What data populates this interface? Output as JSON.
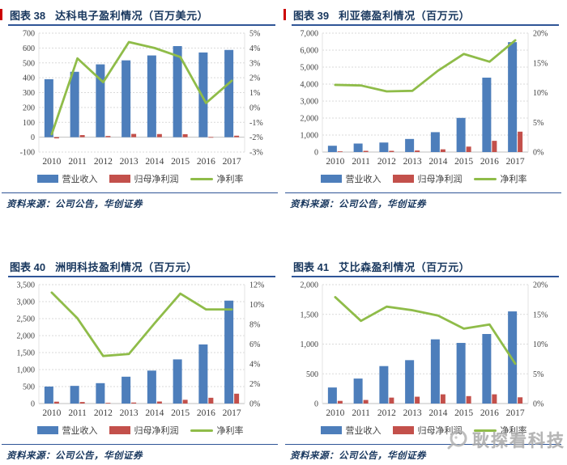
{
  "watermark": {
    "text": "耿探看科技"
  },
  "colors": {
    "bar_blue": "#4D7EBB",
    "bar_red": "#C3504B",
    "line_green": "#8FBC49",
    "title_navy": "#17365D",
    "rule_blue": "#2F5597",
    "red_tick": "#CC0000",
    "axis_text": "#404040",
    "gridline": "#D9D9D9"
  },
  "panels": [
    {
      "fig_label": "图表 38",
      "title": "达科电子盈利情况（百万美元）",
      "source": "资料来源：公司公告，华创证券"
    },
    {
      "fig_label": "图表 39",
      "title": "利亚德盈利情况（百万元）",
      "source": "资料来源：公司公告，华创证券"
    },
    {
      "fig_label": "图表 40",
      "title": "洲明科技盈利情况（百万元）",
      "source": "资料来源：公司公告，华创证券"
    },
    {
      "fig_label": "图表 41",
      "title": "艾比森盈利情况（百万元）",
      "source": "资料来源：公司公告，华创证券"
    }
  ],
  "chart_data": [
    {
      "type": "combo-bar-line",
      "title": "达科电子盈利情况（百万美元）",
      "unit": "百万美元",
      "categories": [
        "2010",
        "2011",
        "2012",
        "2013",
        "2014",
        "2015",
        "2016",
        "2017"
      ],
      "series": [
        {
          "name": "营业收入",
          "type": "bar",
          "axis": "left",
          "color": "#4D7EBB",
          "values": [
            390,
            440,
            490,
            517,
            550,
            613,
            570,
            587
          ]
        },
        {
          "name": "归母净利润",
          "type": "bar",
          "axis": "left",
          "color": "#C3504B",
          "values": [
            -8,
            14,
            8,
            22,
            21,
            20,
            1,
            10
          ]
        },
        {
          "name": "净利率",
          "type": "line",
          "axis": "right",
          "color": "#8FBC49",
          "values": [
            -1.8,
            3.3,
            1.7,
            4.4,
            4.0,
            3.4,
            0.3,
            1.8
          ]
        }
      ],
      "left_axis": {
        "min": -100,
        "max": 700,
        "ticks": [
          "700",
          "600",
          "500",
          "400",
          "300",
          "200",
          "100",
          "0",
          "-100"
        ]
      },
      "right_axis": {
        "min": -3,
        "max": 5,
        "ticks": [
          "5%",
          "4%",
          "3%",
          "2%",
          "1%",
          "0%",
          "-1%",
          "-2%",
          "-3%"
        ]
      },
      "grid": true,
      "legend_position": "bottom"
    },
    {
      "type": "combo-bar-line",
      "title": "利亚德盈利情况（百万元）",
      "unit": "百万元",
      "categories": [
        "2010",
        "2011",
        "2012",
        "2013",
        "2014",
        "2015",
        "2016",
        "2017"
      ],
      "series": [
        {
          "name": "营业收入",
          "type": "bar",
          "axis": "left",
          "color": "#4D7EBB",
          "values": [
            370,
            500,
            560,
            770,
            1170,
            2010,
            4380,
            6470
          ]
        },
        {
          "name": "归母净利润",
          "type": "bar",
          "axis": "left",
          "color": "#C3504B",
          "values": [
            40,
            70,
            70,
            90,
            160,
            320,
            660,
            1200
          ]
        },
        {
          "name": "净利率",
          "type": "line",
          "axis": "right",
          "color": "#8FBC49",
          "values": [
            11.3,
            11.2,
            10.2,
            10.3,
            13.7,
            16.5,
            15.2,
            18.8
          ]
        }
      ],
      "left_axis": {
        "min": 0,
        "max": 7000,
        "ticks": [
          "7,000",
          "6,000",
          "5,000",
          "4,000",
          "3,000",
          "2,000",
          "1,000",
          "0"
        ]
      },
      "right_axis": {
        "min": 0,
        "max": 20,
        "ticks": [
          "20%",
          "15%",
          "10%",
          "5%",
          "0%"
        ]
      },
      "grid": true,
      "legend_position": "bottom"
    },
    {
      "type": "combo-bar-line",
      "title": "洲明科技盈利情况（百万元）",
      "unit": "百万元",
      "categories": [
        "2010",
        "2011",
        "2012",
        "2013",
        "2014",
        "2015",
        "2016",
        "2017"
      ],
      "series": [
        {
          "name": "营业收入",
          "type": "bar",
          "axis": "left",
          "color": "#4D7EBB",
          "values": [
            500,
            520,
            600,
            790,
            970,
            1300,
            1740,
            3030
          ]
        },
        {
          "name": "归母净利润",
          "type": "bar",
          "axis": "left",
          "color": "#C3504B",
          "values": [
            55,
            45,
            20,
            30,
            60,
            110,
            170,
            290
          ]
        },
        {
          "name": "净利率",
          "type": "line",
          "axis": "right",
          "color": "#8FBC49",
          "values": [
            11.2,
            8.6,
            4.8,
            5.0,
            8.1,
            11.1,
            9.5,
            9.5
          ]
        }
      ],
      "left_axis": {
        "min": 0,
        "max": 3500,
        "ticks": [
          "3,500",
          "3,000",
          "2,500",
          "2,000",
          "1,500",
          "1,000",
          "500",
          "0"
        ]
      },
      "right_axis": {
        "min": 0,
        "max": 12,
        "ticks": [
          "12%",
          "10%",
          "8%",
          "6%",
          "4%",
          "2%",
          "0%"
        ]
      },
      "grid": true,
      "legend_position": "bottom"
    },
    {
      "type": "combo-bar-line",
      "title": "艾比森盈利情况（百万元）",
      "unit": "百万元",
      "categories": [
        "2010",
        "2011",
        "2012",
        "2013",
        "2014",
        "2015",
        "2016",
        "2017"
      ],
      "series": [
        {
          "name": "营业收入",
          "type": "bar",
          "axis": "left",
          "color": "#4D7EBB",
          "values": [
            270,
            420,
            630,
            730,
            1080,
            1020,
            1170,
            1550
          ]
        },
        {
          "name": "归母净利润",
          "type": "bar",
          "axis": "left",
          "color": "#C3504B",
          "values": [
            45,
            60,
            100,
            115,
            155,
            125,
            155,
            105
          ]
        },
        {
          "name": "净利率",
          "type": "line",
          "axis": "right",
          "color": "#8FBC49",
          "values": [
            17.9,
            13.9,
            16.3,
            15.7,
            14.8,
            12.6,
            13.3,
            6.7
          ]
        }
      ],
      "left_axis": {
        "min": 0,
        "max": 2000,
        "ticks": [
          "2,000",
          "1,500",
          "1,000",
          "500",
          "0"
        ]
      },
      "right_axis": {
        "min": 0,
        "max": 20,
        "ticks": [
          "20%",
          "15%",
          "10%",
          "5%",
          "0%"
        ]
      },
      "grid": true,
      "legend_position": "bottom"
    }
  ]
}
